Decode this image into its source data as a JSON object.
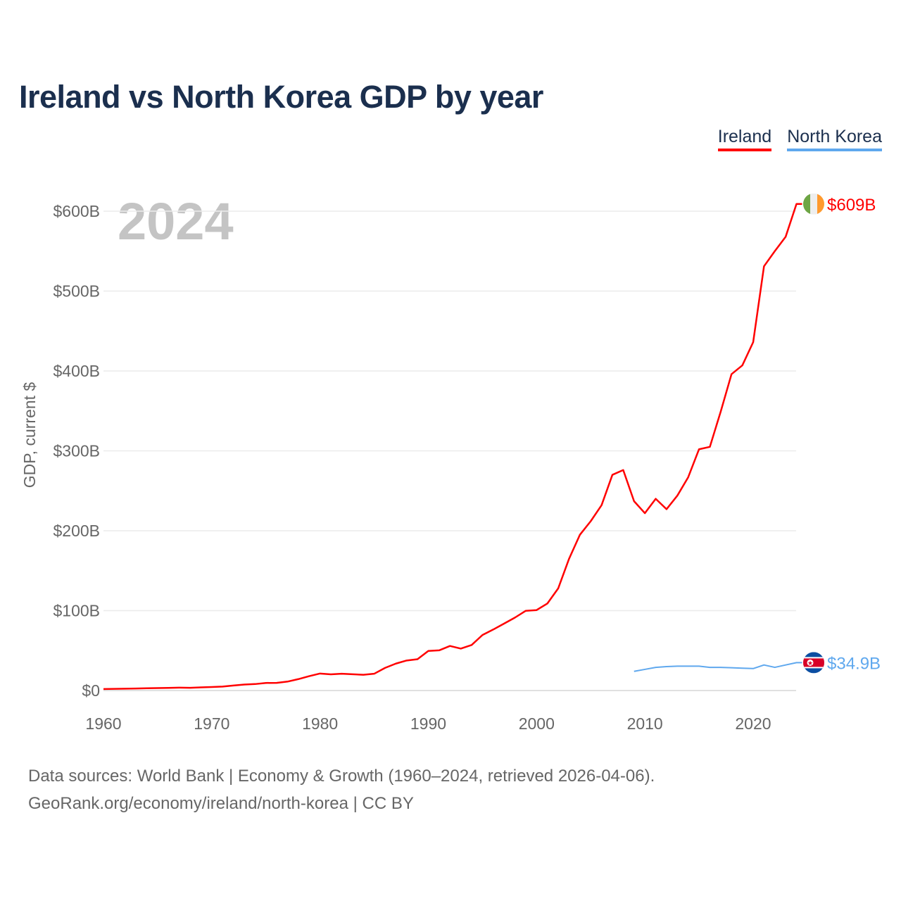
{
  "title": "Ireland vs North Korea GDP by year",
  "year_watermark": "2024",
  "footer": {
    "line1": "Data sources: World Bank | Economy & Growth (1960–2024, retrieved 2026-04-06).",
    "line2": "GeoRank.org/economy/ireland/north-korea | CC BY"
  },
  "chart_data": {
    "type": "line",
    "title": "Ireland vs North Korea GDP by year",
    "xlabel": "",
    "ylabel": "GDP, current $",
    "xlim": [
      1960,
      2024
    ],
    "ylim": [
      0,
      600
    ],
    "x_ticks": [
      1960,
      1970,
      1980,
      1990,
      2000,
      2010,
      2020
    ],
    "y_ticks": [
      {
        "v": 0,
        "label": "$0"
      },
      {
        "v": 100,
        "label": "$100B"
      },
      {
        "v": 200,
        "label": "$200B"
      },
      {
        "v": 300,
        "label": "$300B"
      },
      {
        "v": 400,
        "label": "$400B"
      },
      {
        "v": 500,
        "label": "$500B"
      },
      {
        "v": 600,
        "label": "$600B"
      }
    ],
    "grid": true,
    "legend_placement": "top-right",
    "series": [
      {
        "name": "Ireland",
        "color": "#ff0000",
        "end_label": "$609B",
        "flag": [
          "#6da544",
          "#eeeeee",
          "#ff9a2e"
        ],
        "start": 1960,
        "values": [
          1.9,
          2.1,
          2.3,
          2.5,
          2.9,
          3.1,
          3.3,
          3.6,
          3.4,
          4.0,
          4.4,
          5.0,
          6.3,
          7.5,
          8.1,
          9.5,
          9.6,
          11.2,
          14.3,
          18,
          21.3,
          20.3,
          21,
          20.4,
          19.7,
          21,
          28.3,
          33.7,
          37.6,
          39.2,
          49.6,
          50.3,
          55.8,
          52.5,
          57,
          69.5,
          76.4,
          83.8,
          91.3,
          99.8,
          100.7,
          109,
          128,
          165,
          195,
          212,
          232,
          270,
          276,
          237,
          222,
          240,
          227,
          244,
          267,
          302,
          305,
          349,
          396,
          407,
          436,
          531,
          550,
          568,
          609
        ]
      },
      {
        "name": "North Korea",
        "color": "#5fa8ee",
        "end_label": "$34.9B",
        "flag": [
          "#0b4ea2",
          "#d80027"
        ],
        "start": 2009,
        "values": [
          24,
          26.5,
          29,
          30,
          30.5,
          30.5,
          30.5,
          29,
          29,
          28.5,
          28,
          27.5,
          32,
          29,
          32,
          34.9
        ]
      }
    ]
  }
}
